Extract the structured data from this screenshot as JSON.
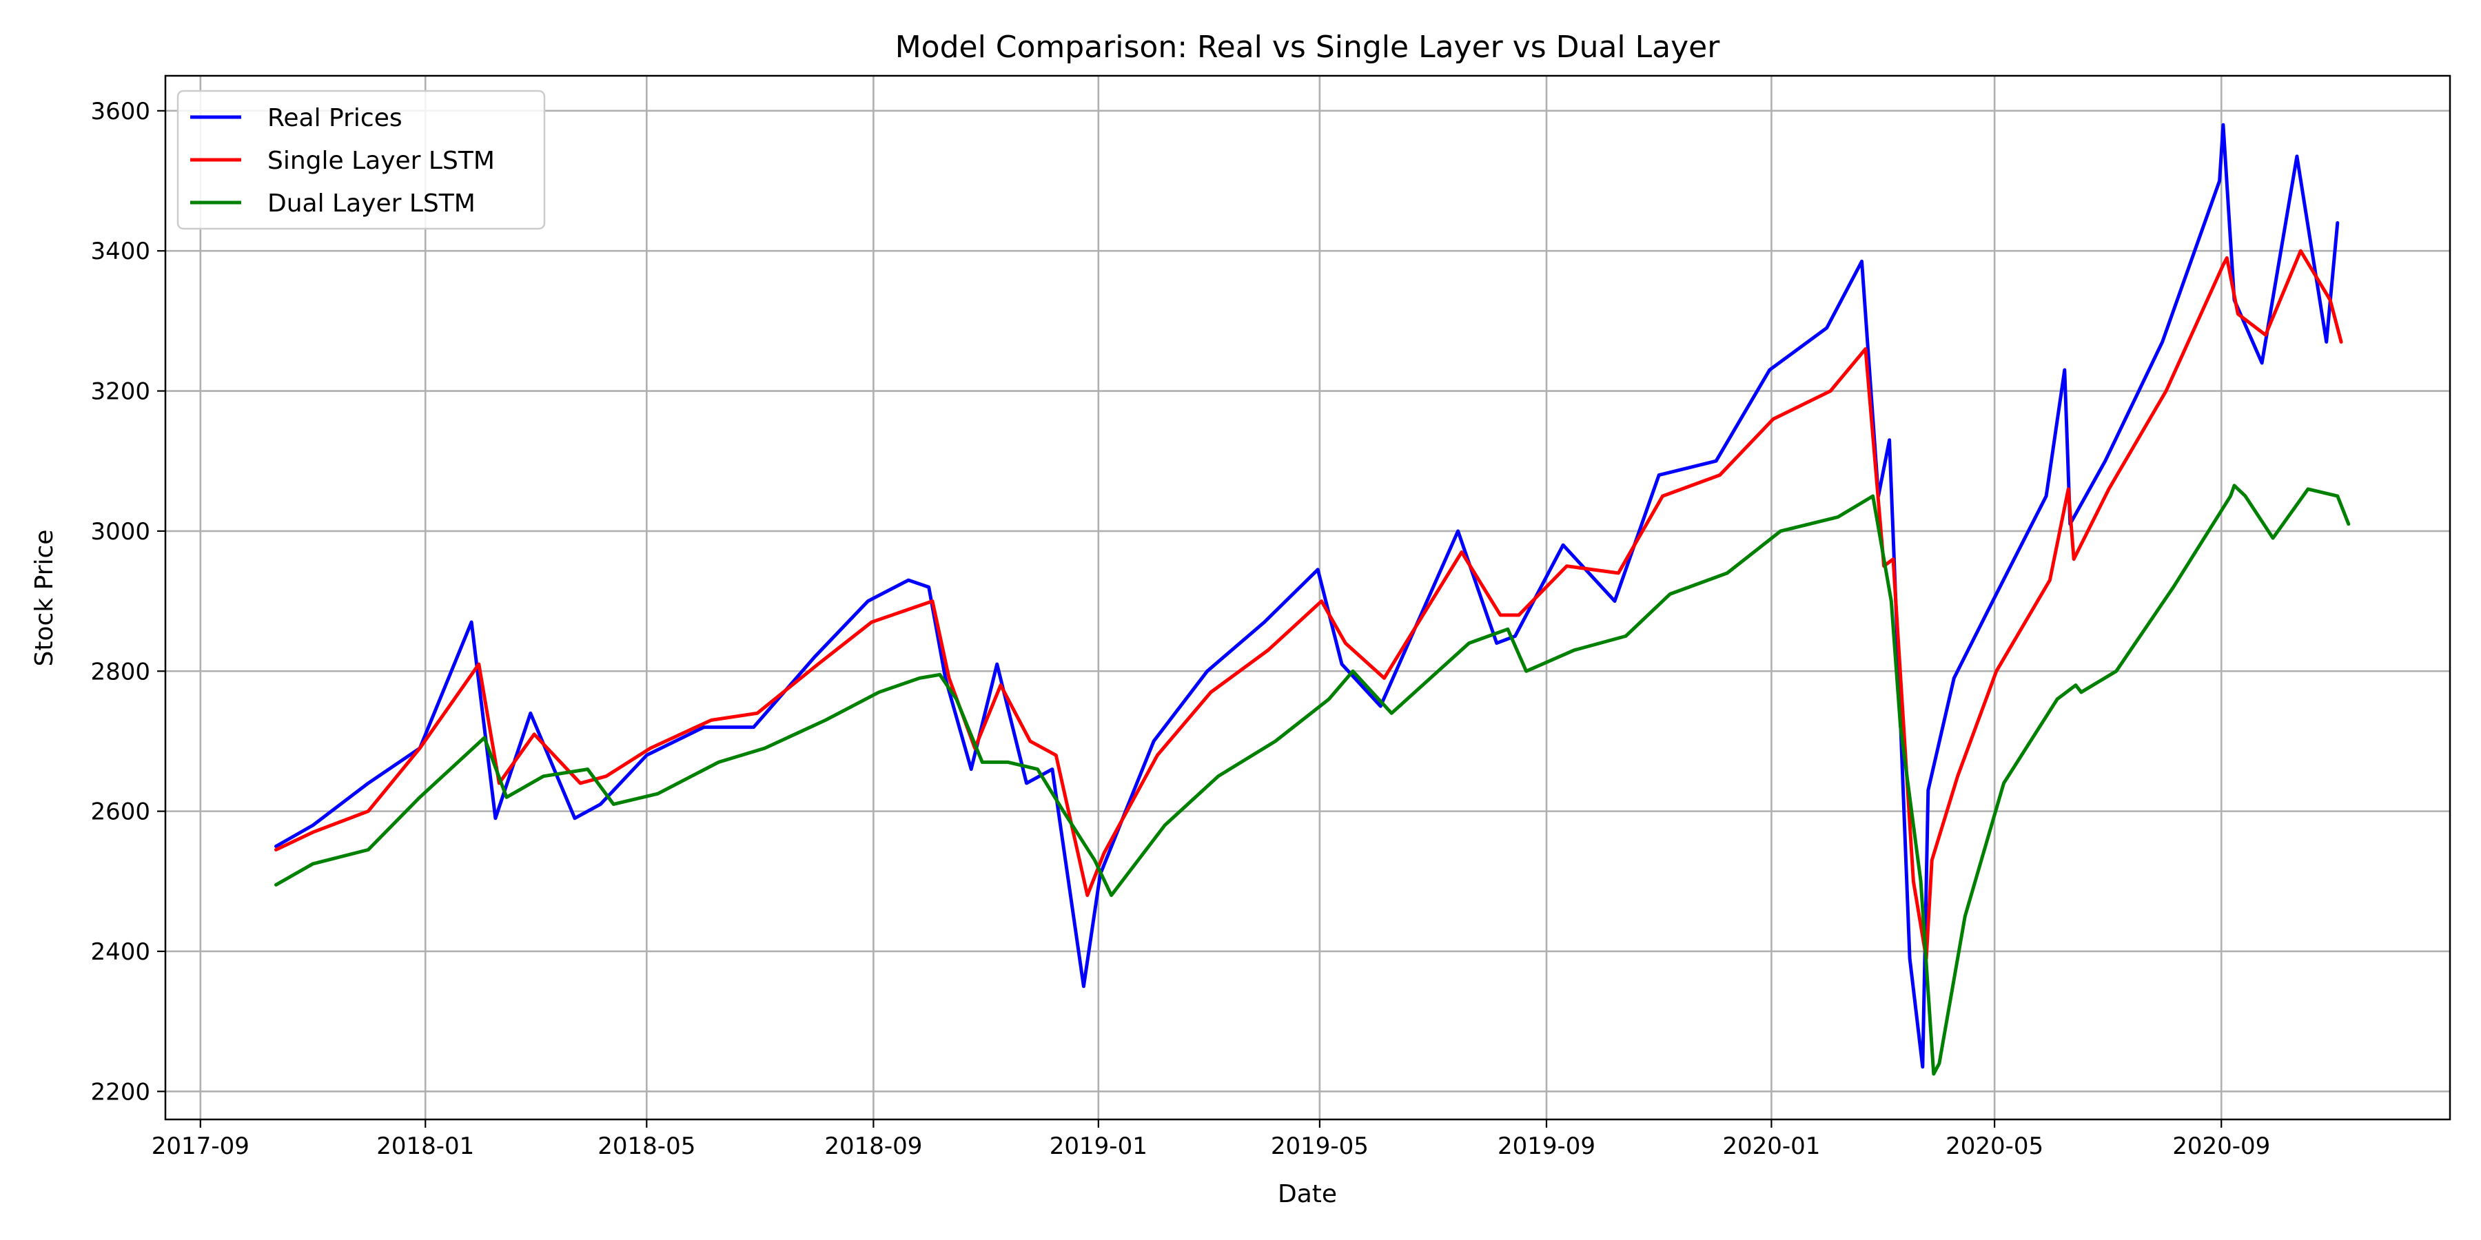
{
  "chart_data": {
    "type": "line",
    "title": "Model Comparison: Real vs Single Layer vs Dual Layer",
    "xlabel": "Date",
    "ylabel": "Stock Price",
    "xlim": [
      "2017-08-13",
      "2021-01-03"
    ],
    "ylim": [
      2160,
      3650
    ],
    "grid": true,
    "legend_position": "upper-left",
    "x_ticks": [
      "2017-09",
      "2018-01",
      "2018-05",
      "2018-09",
      "2019-01",
      "2019-05",
      "2019-09",
      "2020-01",
      "2020-05",
      "2020-09"
    ],
    "y_ticks": [
      2200,
      2400,
      2600,
      2800,
      3000,
      3200,
      3400,
      3600
    ],
    "series": [
      {
        "name": "Real Prices",
        "color": "#0000ff",
        "x": [
          "2017-10-12",
          "2017-11-01",
          "2017-12-01",
          "2017-12-29",
          "2018-01-26",
          "2018-02-08",
          "2018-02-27",
          "2018-03-23",
          "2018-04-06",
          "2018-05-01",
          "2018-06-01",
          "2018-06-28",
          "2018-07-31",
          "2018-08-29",
          "2018-09-20",
          "2018-10-01",
          "2018-10-10",
          "2018-10-24",
          "2018-11-07",
          "2018-11-23",
          "2018-12-07",
          "2018-12-24",
          "2019-01-02",
          "2019-01-31",
          "2019-03-01",
          "2019-04-01",
          "2019-04-30",
          "2019-05-13",
          "2019-06-03",
          "2019-07-15",
          "2019-08-05",
          "2019-08-15",
          "2019-09-10",
          "2019-10-08",
          "2019-11-01",
          "2019-12-02",
          "2019-12-31",
          "2020-01-31",
          "2020-02-19",
          "2020-02-28",
          "2020-03-05",
          "2020-03-16",
          "2020-03-23",
          "2020-03-26",
          "2020-04-09",
          "2020-04-30",
          "2020-05-29",
          "2020-06-08",
          "2020-06-11",
          "2020-06-30",
          "2020-07-31",
          "2020-08-31",
          "2020-09-02",
          "2020-09-08",
          "2020-09-23",
          "2020-10-12",
          "2020-10-28",
          "2020-11-03"
        ],
        "values": [
          2550,
          2580,
          2640,
          2690,
          2870,
          2590,
          2740,
          2590,
          2610,
          2680,
          2720,
          2720,
          2820,
          2900,
          2930,
          2920,
          2790,
          2660,
          2810,
          2640,
          2660,
          2350,
          2510,
          2700,
          2800,
          2870,
          2945,
          2810,
          2750,
          3000,
          2840,
          2850,
          2980,
          2900,
          3080,
          3100,
          3230,
          3290,
          3385,
          3050,
          3130,
          2390,
          2235,
          2630,
          2790,
          2900,
          3050,
          3230,
          3010,
          3100,
          3270,
          3500,
          3580,
          3330,
          3240,
          3535,
          3270,
          3440
        ]
      },
      {
        "name": "Single Layer LSTM",
        "color": "#ff0000",
        "x": [
          "2017-10-12",
          "2017-11-01",
          "2017-12-01",
          "2017-12-29",
          "2018-01-30",
          "2018-02-10",
          "2018-03-01",
          "2018-03-26",
          "2018-04-09",
          "2018-05-03",
          "2018-06-05",
          "2018-06-30",
          "2018-08-02",
          "2018-08-31",
          "2018-09-22",
          "2018-10-03",
          "2018-10-12",
          "2018-10-26",
          "2018-11-09",
          "2018-11-25",
          "2018-12-09",
          "2018-12-26",
          "2019-01-04",
          "2019-02-02",
          "2019-03-03",
          "2019-04-03",
          "2019-05-02",
          "2019-05-15",
          "2019-06-05",
          "2019-07-17",
          "2019-08-07",
          "2019-08-17",
          "2019-09-12",
          "2019-10-10",
          "2019-11-03",
          "2019-12-04",
          "2020-01-02",
          "2020-02-02",
          "2020-02-21",
          "2020-03-02",
          "2020-03-07",
          "2020-03-18",
          "2020-03-25",
          "2020-03-28",
          "2020-04-11",
          "2020-05-02",
          "2020-05-31",
          "2020-06-10",
          "2020-06-13",
          "2020-07-02",
          "2020-08-02",
          "2020-09-02",
          "2020-09-04",
          "2020-09-10",
          "2020-09-25",
          "2020-10-14",
          "2020-10-30",
          "2020-11-05"
        ],
        "values": [
          2545,
          2570,
          2600,
          2690,
          2810,
          2640,
          2710,
          2640,
          2650,
          2690,
          2730,
          2740,
          2810,
          2870,
          2890,
          2900,
          2790,
          2690,
          2780,
          2700,
          2680,
          2480,
          2540,
          2680,
          2770,
          2830,
          2900,
          2840,
          2790,
          2970,
          2880,
          2880,
          2950,
          2940,
          3050,
          3080,
          3160,
          3200,
          3260,
          2950,
          2960,
          2500,
          2390,
          2530,
          2650,
          2800,
          2930,
          3060,
          2960,
          3060,
          3200,
          3380,
          3390,
          3310,
          3280,
          3400,
          3330,
          3270
        ]
      },
      {
        "name": "Dual Layer LSTM",
        "color": "#008000",
        "x": [
          "2017-10-12",
          "2017-11-01",
          "2017-12-01",
          "2017-12-29",
          "2018-02-02",
          "2018-02-14",
          "2018-03-06",
          "2018-03-30",
          "2018-04-13",
          "2018-05-07",
          "2018-06-09",
          "2018-07-04",
          "2018-08-06",
          "2018-09-04",
          "2018-09-26",
          "2018-10-07",
          "2018-10-16",
          "2018-10-30",
          "2018-11-13",
          "2018-11-29",
          "2018-12-13",
          "2018-12-30",
          "2019-01-08",
          "2019-02-06",
          "2019-03-07",
          "2019-04-07",
          "2019-05-06",
          "2019-05-19",
          "2019-06-09",
          "2019-07-21",
          "2019-08-11",
          "2019-08-21",
          "2019-09-16",
          "2019-10-14",
          "2019-11-07",
          "2019-12-08",
          "2020-01-06",
          "2020-02-06",
          "2020-02-25",
          "2020-03-06",
          "2020-03-11",
          "2020-03-22",
          "2020-03-29",
          "2020-04-01",
          "2020-04-15",
          "2020-05-06",
          "2020-06-04",
          "2020-06-14",
          "2020-06-17",
          "2020-07-06",
          "2020-08-06",
          "2020-09-06",
          "2020-09-08",
          "2020-09-14",
          "2020-09-29",
          "2020-10-18",
          "2020-11-03",
          "2020-11-09"
        ],
        "values": [
          2495,
          2525,
          2545,
          2620,
          2705,
          2620,
          2650,
          2660,
          2610,
          2625,
          2670,
          2690,
          2730,
          2770,
          2790,
          2795,
          2760,
          2670,
          2670,
          2660,
          2600,
          2530,
          2480,
          2580,
          2650,
          2700,
          2760,
          2800,
          2740,
          2840,
          2860,
          2800,
          2830,
          2850,
          2910,
          2940,
          3000,
          3020,
          3050,
          2900,
          2720,
          2500,
          2225,
          2240,
          2450,
          2640,
          2760,
          2780,
          2770,
          2800,
          2920,
          3050,
          3065,
          3050,
          2990,
          3060,
          3050,
          3010
        ]
      }
    ]
  }
}
